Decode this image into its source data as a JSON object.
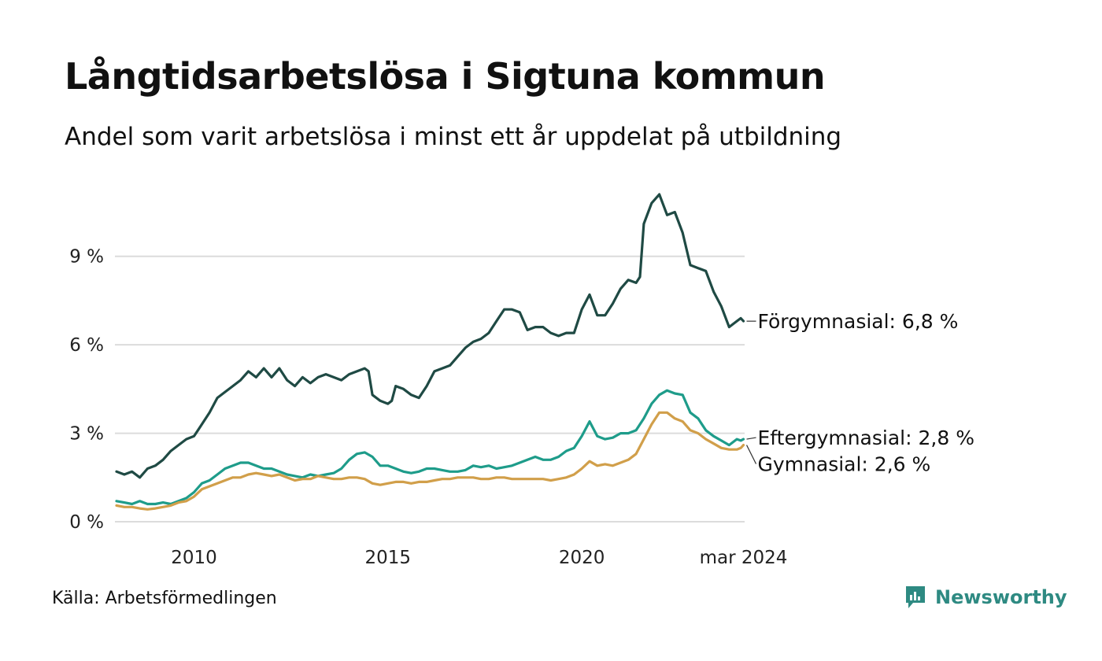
{
  "title": "Långtidsarbetslösa i Sigtuna kommun",
  "subtitle": "Andel som varit arbetslösa i minst ett år uppdelat på utbildning",
  "source": "Källa: Arbetsförmedlingen",
  "brand": {
    "name": "Newsworthy",
    "icon": "newsworthy-logo-icon",
    "color": "#2e8a82"
  },
  "chart_data": {
    "type": "line",
    "title": "Långtidsarbetslösa i Sigtuna kommun",
    "subtitle": "Andel som varit arbetslösa i minst ett år uppdelat på utbildning",
    "x_unit": "year (decimal)",
    "xlim": [
      2008.0,
      2024.2
    ],
    "ylim": [
      0,
      11.5
    ],
    "grid": true,
    "y_ticks": [
      {
        "value": 0,
        "label": "0 %"
      },
      {
        "value": 3,
        "label": "3 %"
      },
      {
        "value": 6,
        "label": "6 %"
      },
      {
        "value": 9,
        "label": "9 %"
      }
    ],
    "x_ticks": [
      {
        "value": 2010,
        "label": "2010"
      },
      {
        "value": 2015,
        "label": "2015"
      },
      {
        "value": 2020,
        "label": "2020"
      },
      {
        "value": 2024.17,
        "label": "mar 2024"
      }
    ],
    "series": [
      {
        "name": "Förgymnasial",
        "end_label": "Förgymnasial: 6,8 %",
        "color": "#1f4a44",
        "points": [
          [
            2008.0,
            1.7
          ],
          [
            2008.2,
            1.6
          ],
          [
            2008.4,
            1.7
          ],
          [
            2008.6,
            1.5
          ],
          [
            2008.8,
            1.8
          ],
          [
            2009.0,
            1.9
          ],
          [
            2009.2,
            2.1
          ],
          [
            2009.4,
            2.4
          ],
          [
            2009.6,
            2.6
          ],
          [
            2009.8,
            2.8
          ],
          [
            2010.0,
            2.9
          ],
          [
            2010.2,
            3.3
          ],
          [
            2010.4,
            3.7
          ],
          [
            2010.6,
            4.2
          ],
          [
            2010.8,
            4.4
          ],
          [
            2011.0,
            4.6
          ],
          [
            2011.2,
            4.8
          ],
          [
            2011.4,
            5.1
          ],
          [
            2011.6,
            4.9
          ],
          [
            2011.8,
            5.2
          ],
          [
            2012.0,
            4.9
          ],
          [
            2012.2,
            5.2
          ],
          [
            2012.4,
            4.8
          ],
          [
            2012.6,
            4.6
          ],
          [
            2012.8,
            4.9
          ],
          [
            2013.0,
            4.7
          ],
          [
            2013.2,
            4.9
          ],
          [
            2013.4,
            5.0
          ],
          [
            2013.6,
            4.9
          ],
          [
            2013.8,
            4.8
          ],
          [
            2014.0,
            5.0
          ],
          [
            2014.2,
            5.1
          ],
          [
            2014.4,
            5.2
          ],
          [
            2014.5,
            5.1
          ],
          [
            2014.6,
            4.3
          ],
          [
            2014.8,
            4.1
          ],
          [
            2015.0,
            4.0
          ],
          [
            2015.1,
            4.1
          ],
          [
            2015.2,
            4.6
          ],
          [
            2015.4,
            4.5
          ],
          [
            2015.6,
            4.3
          ],
          [
            2015.8,
            4.2
          ],
          [
            2016.0,
            4.6
          ],
          [
            2016.2,
            5.1
          ],
          [
            2016.4,
            5.2
          ],
          [
            2016.6,
            5.3
          ],
          [
            2016.8,
            5.6
          ],
          [
            2017.0,
            5.9
          ],
          [
            2017.2,
            6.1
          ],
          [
            2017.4,
            6.2
          ],
          [
            2017.6,
            6.4
          ],
          [
            2017.8,
            6.8
          ],
          [
            2018.0,
            7.2
          ],
          [
            2018.2,
            7.2
          ],
          [
            2018.4,
            7.1
          ],
          [
            2018.6,
            6.5
          ],
          [
            2018.8,
            6.6
          ],
          [
            2019.0,
            6.6
          ],
          [
            2019.2,
            6.4
          ],
          [
            2019.4,
            6.3
          ],
          [
            2019.6,
            6.4
          ],
          [
            2019.8,
            6.4
          ],
          [
            2020.0,
            7.2
          ],
          [
            2020.2,
            7.7
          ],
          [
            2020.4,
            7.0
          ],
          [
            2020.6,
            7.0
          ],
          [
            2020.8,
            7.4
          ],
          [
            2021.0,
            7.9
          ],
          [
            2021.2,
            8.2
          ],
          [
            2021.4,
            8.1
          ],
          [
            2021.5,
            8.3
          ],
          [
            2021.6,
            10.1
          ],
          [
            2021.8,
            10.8
          ],
          [
            2022.0,
            11.1
          ],
          [
            2022.2,
            10.4
          ],
          [
            2022.4,
            10.5
          ],
          [
            2022.6,
            9.8
          ],
          [
            2022.8,
            8.7
          ],
          [
            2023.0,
            8.6
          ],
          [
            2023.2,
            8.5
          ],
          [
            2023.4,
            7.8
          ],
          [
            2023.6,
            7.3
          ],
          [
            2023.8,
            6.6
          ],
          [
            2024.0,
            6.8
          ],
          [
            2024.1,
            6.9
          ],
          [
            2024.17,
            6.8
          ]
        ]
      },
      {
        "name": "Eftergymnasial",
        "end_label": "Eftergymnasial: 2,8 %",
        "color": "#1e9c8a",
        "points": [
          [
            2008.0,
            0.7
          ],
          [
            2008.2,
            0.65
          ],
          [
            2008.4,
            0.6
          ],
          [
            2008.6,
            0.7
          ],
          [
            2008.8,
            0.6
          ],
          [
            2009.0,
            0.6
          ],
          [
            2009.2,
            0.65
          ],
          [
            2009.4,
            0.6
          ],
          [
            2009.6,
            0.7
          ],
          [
            2009.8,
            0.8
          ],
          [
            2010.0,
            1.0
          ],
          [
            2010.2,
            1.3
          ],
          [
            2010.4,
            1.4
          ],
          [
            2010.6,
            1.6
          ],
          [
            2010.8,
            1.8
          ],
          [
            2011.0,
            1.9
          ],
          [
            2011.2,
            2.0
          ],
          [
            2011.4,
            2.0
          ],
          [
            2011.6,
            1.9
          ],
          [
            2011.8,
            1.8
          ],
          [
            2012.0,
            1.8
          ],
          [
            2012.2,
            1.7
          ],
          [
            2012.4,
            1.6
          ],
          [
            2012.6,
            1.55
          ],
          [
            2012.8,
            1.5
          ],
          [
            2013.0,
            1.6
          ],
          [
            2013.2,
            1.55
          ],
          [
            2013.4,
            1.6
          ],
          [
            2013.6,
            1.65
          ],
          [
            2013.8,
            1.8
          ],
          [
            2014.0,
            2.1
          ],
          [
            2014.2,
            2.3
          ],
          [
            2014.4,
            2.35
          ],
          [
            2014.6,
            2.2
          ],
          [
            2014.8,
            1.9
          ],
          [
            2015.0,
            1.9
          ],
          [
            2015.2,
            1.8
          ],
          [
            2015.4,
            1.7
          ],
          [
            2015.6,
            1.65
          ],
          [
            2015.8,
            1.7
          ],
          [
            2016.0,
            1.8
          ],
          [
            2016.2,
            1.8
          ],
          [
            2016.4,
            1.75
          ],
          [
            2016.6,
            1.7
          ],
          [
            2016.8,
            1.7
          ],
          [
            2017.0,
            1.75
          ],
          [
            2017.2,
            1.9
          ],
          [
            2017.4,
            1.85
          ],
          [
            2017.6,
            1.9
          ],
          [
            2017.8,
            1.8
          ],
          [
            2018.0,
            1.85
          ],
          [
            2018.2,
            1.9
          ],
          [
            2018.4,
            2.0
          ],
          [
            2018.6,
            2.1
          ],
          [
            2018.8,
            2.2
          ],
          [
            2019.0,
            2.1
          ],
          [
            2019.2,
            2.1
          ],
          [
            2019.4,
            2.2
          ],
          [
            2019.6,
            2.4
          ],
          [
            2019.8,
            2.5
          ],
          [
            2020.0,
            2.9
          ],
          [
            2020.2,
            3.4
          ],
          [
            2020.4,
            2.9
          ],
          [
            2020.6,
            2.8
          ],
          [
            2020.8,
            2.85
          ],
          [
            2021.0,
            3.0
          ],
          [
            2021.2,
            3.0
          ],
          [
            2021.4,
            3.1
          ],
          [
            2021.6,
            3.5
          ],
          [
            2021.8,
            4.0
          ],
          [
            2022.0,
            4.3
          ],
          [
            2022.2,
            4.45
          ],
          [
            2022.4,
            4.35
          ],
          [
            2022.6,
            4.3
          ],
          [
            2022.8,
            3.7
          ],
          [
            2023.0,
            3.5
          ],
          [
            2023.2,
            3.1
          ],
          [
            2023.4,
            2.9
          ],
          [
            2023.6,
            2.75
          ],
          [
            2023.8,
            2.6
          ],
          [
            2024.0,
            2.8
          ],
          [
            2024.1,
            2.75
          ],
          [
            2024.17,
            2.8
          ]
        ]
      },
      {
        "name": "Gymnasial",
        "end_label": "Gymnasial: 2,6 %",
        "color": "#d19f4a",
        "points": [
          [
            2008.0,
            0.55
          ],
          [
            2008.2,
            0.5
          ],
          [
            2008.4,
            0.5
          ],
          [
            2008.6,
            0.45
          ],
          [
            2008.8,
            0.42
          ],
          [
            2009.0,
            0.45
          ],
          [
            2009.2,
            0.5
          ],
          [
            2009.4,
            0.55
          ],
          [
            2009.6,
            0.65
          ],
          [
            2009.8,
            0.7
          ],
          [
            2010.0,
            0.85
          ],
          [
            2010.2,
            1.1
          ],
          [
            2010.4,
            1.2
          ],
          [
            2010.6,
            1.3
          ],
          [
            2010.8,
            1.4
          ],
          [
            2011.0,
            1.5
          ],
          [
            2011.2,
            1.5
          ],
          [
            2011.4,
            1.6
          ],
          [
            2011.6,
            1.65
          ],
          [
            2011.8,
            1.6
          ],
          [
            2012.0,
            1.55
          ],
          [
            2012.2,
            1.6
          ],
          [
            2012.4,
            1.5
          ],
          [
            2012.6,
            1.4
          ],
          [
            2012.8,
            1.45
          ],
          [
            2013.0,
            1.45
          ],
          [
            2013.2,
            1.55
          ],
          [
            2013.4,
            1.5
          ],
          [
            2013.6,
            1.45
          ],
          [
            2013.8,
            1.45
          ],
          [
            2014.0,
            1.5
          ],
          [
            2014.2,
            1.5
          ],
          [
            2014.4,
            1.45
          ],
          [
            2014.6,
            1.3
          ],
          [
            2014.8,
            1.25
          ],
          [
            2015.0,
            1.3
          ],
          [
            2015.2,
            1.35
          ],
          [
            2015.4,
            1.35
          ],
          [
            2015.6,
            1.3
          ],
          [
            2015.8,
            1.35
          ],
          [
            2016.0,
            1.35
          ],
          [
            2016.2,
            1.4
          ],
          [
            2016.4,
            1.45
          ],
          [
            2016.6,
            1.45
          ],
          [
            2016.8,
            1.5
          ],
          [
            2017.0,
            1.5
          ],
          [
            2017.2,
            1.5
          ],
          [
            2017.4,
            1.45
          ],
          [
            2017.6,
            1.45
          ],
          [
            2017.8,
            1.5
          ],
          [
            2018.0,
            1.5
          ],
          [
            2018.2,
            1.45
          ],
          [
            2018.4,
            1.45
          ],
          [
            2018.6,
            1.45
          ],
          [
            2018.8,
            1.45
          ],
          [
            2019.0,
            1.45
          ],
          [
            2019.2,
            1.4
          ],
          [
            2019.4,
            1.45
          ],
          [
            2019.6,
            1.5
          ],
          [
            2019.8,
            1.6
          ],
          [
            2020.0,
            1.8
          ],
          [
            2020.2,
            2.05
          ],
          [
            2020.4,
            1.9
          ],
          [
            2020.6,
            1.95
          ],
          [
            2020.8,
            1.9
          ],
          [
            2021.0,
            2.0
          ],
          [
            2021.2,
            2.1
          ],
          [
            2021.4,
            2.3
          ],
          [
            2021.6,
            2.8
          ],
          [
            2021.8,
            3.3
          ],
          [
            2022.0,
            3.7
          ],
          [
            2022.2,
            3.7
          ],
          [
            2022.4,
            3.5
          ],
          [
            2022.6,
            3.4
          ],
          [
            2022.8,
            3.1
          ],
          [
            2023.0,
            3.0
          ],
          [
            2023.2,
            2.8
          ],
          [
            2023.4,
            2.65
          ],
          [
            2023.6,
            2.5
          ],
          [
            2023.8,
            2.45
          ],
          [
            2024.0,
            2.45
          ],
          [
            2024.1,
            2.5
          ],
          [
            2024.17,
            2.6
          ]
        ]
      }
    ]
  }
}
